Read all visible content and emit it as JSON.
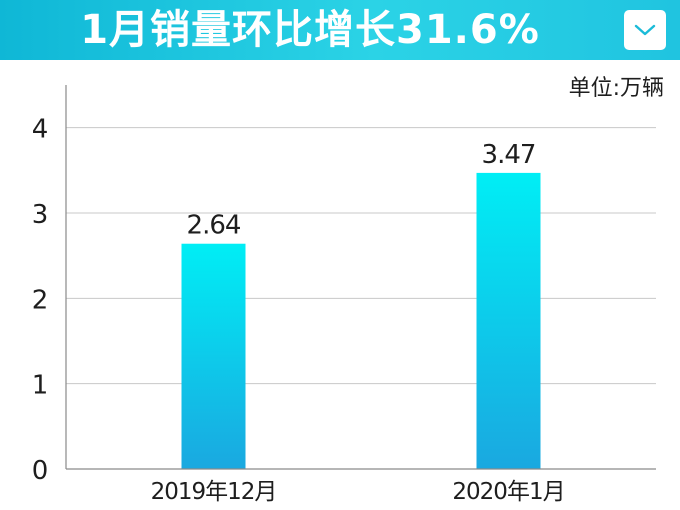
{
  "header": {
    "title": "1月销量环比增长31.6%",
    "dropdown_icon": "chevron-down-icon"
  },
  "unit_label": "单位:万辆",
  "colors": {
    "header_start": "#0fb7d6",
    "header_end": "#2bd3e6",
    "bar_top": "#00eef5",
    "bar_bottom": "#1aa8e0",
    "grid": "#c8c8c8",
    "axis": "#8a8a8a",
    "text": "#1e1e1e"
  },
  "chart_data": {
    "type": "bar",
    "categories": [
      "2019年12月",
      "2020年1月"
    ],
    "values": [
      2.64,
      3.47
    ],
    "value_labels": [
      "2.64",
      "3.47"
    ],
    "yticks": [
      "0",
      "1",
      "2",
      "3",
      "4"
    ],
    "ylim": [
      0,
      4.5
    ],
    "grid": true,
    "legend": "none"
  }
}
